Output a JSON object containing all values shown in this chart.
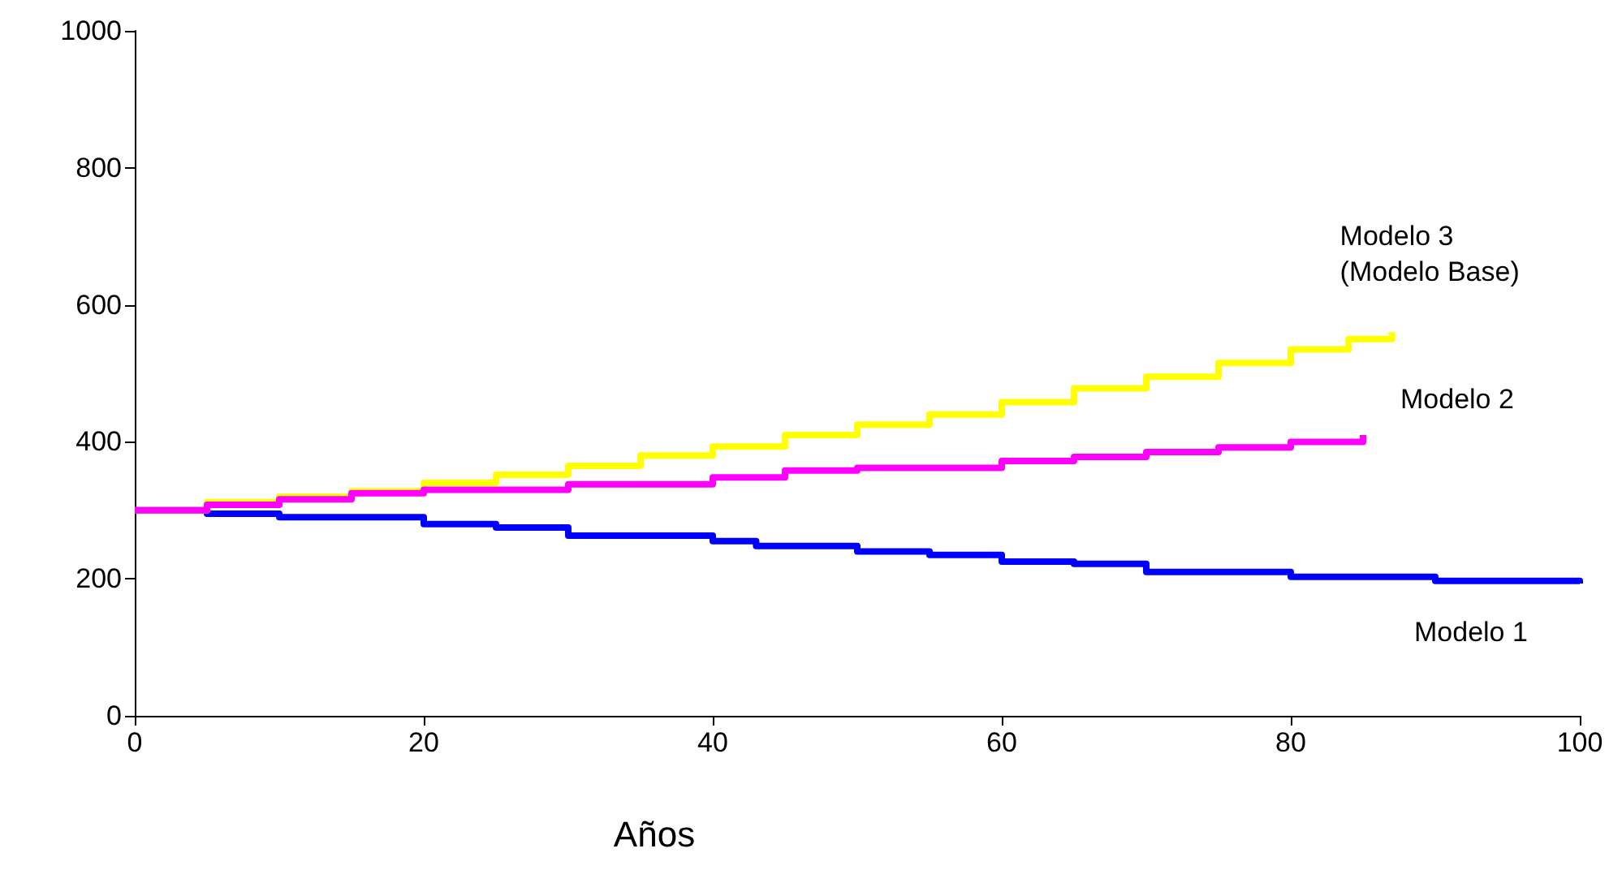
{
  "chart_data": {
    "type": "step",
    "xlabel": "Años",
    "xlim": [
      0,
      100
    ],
    "ylim": [
      0,
      1000
    ],
    "xticks": [
      0,
      20,
      40,
      60,
      80,
      100
    ],
    "yticks": [
      0,
      200,
      400,
      600,
      800,
      1000
    ],
    "grid": false,
    "legend": false,
    "marker": "none",
    "line_style": "solid",
    "series": [
      {
        "name": "Modelo 1",
        "color": "#0000ff",
        "x": [
          0,
          5,
          10,
          17,
          20,
          25,
          30,
          40,
          43,
          50,
          55,
          60,
          65,
          70,
          80,
          90,
          100
        ],
        "values": [
          300,
          295,
          290,
          290,
          280,
          275,
          263,
          255,
          248,
          240,
          235,
          225,
          222,
          210,
          203,
          197,
          193
        ]
      },
      {
        "name": "Modelo 3 (Modelo Base)",
        "color": "#ffff00",
        "x": [
          0,
          5,
          10,
          15,
          20,
          25,
          30,
          35,
          40,
          45,
          50,
          55,
          60,
          65,
          70,
          75,
          80,
          84,
          87
        ],
        "values": [
          300,
          312,
          320,
          328,
          340,
          352,
          365,
          380,
          393,
          410,
          425,
          440,
          458,
          478,
          495,
          515,
          535,
          550,
          560
        ]
      },
      {
        "name": "Modelo 2",
        "color": "#ff00ff",
        "x": [
          0,
          5,
          10,
          15,
          20,
          30,
          40,
          45,
          50,
          60,
          65,
          70,
          75,
          80,
          85
        ],
        "values": [
          300,
          308,
          316,
          325,
          330,
          338,
          348,
          358,
          362,
          372,
          378,
          385,
          392,
          400,
          410
        ]
      }
    ]
  }
}
